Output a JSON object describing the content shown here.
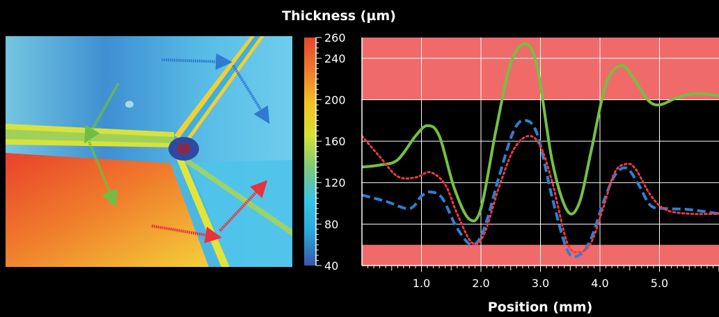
{
  "colorbar": {
    "title": "Thickness (µm)",
    "min": 40,
    "max": 260,
    "tick_labels": [
      "260",
      "240",
      "200",
      "160",
      "120",
      "80",
      "40"
    ],
    "tick_values": [
      260,
      240,
      200,
      160,
      120,
      80,
      40
    ],
    "stops": [
      "#3a55a8",
      "#29a6dc",
      "#37c4e6",
      "#7cc97a",
      "#d6e035",
      "#f5c023",
      "#f07a2d",
      "#e8442c"
    ]
  },
  "map_image": {
    "arrows": [
      {
        "name": "blue",
        "color": "#2f7bd1"
      },
      {
        "name": "green",
        "color": "#6fbf45"
      },
      {
        "name": "red",
        "color": "#e8323c"
      }
    ]
  },
  "chart_data": {
    "type": "line",
    "xlabel": "Position (mm)",
    "ylabel": "",
    "xlim": [
      0,
      6
    ],
    "ylim": [
      40,
      260
    ],
    "x_tick_labels": [
      "1.0",
      "2.0",
      "3.0",
      "4.0",
      "5.0"
    ],
    "x_ticks": [
      1.0,
      2.0,
      3.0,
      4.0,
      5.0
    ],
    "y_ticks": [
      40,
      80,
      120,
      160,
      200,
      240,
      260
    ],
    "grid": true,
    "bands": [
      {
        "from": 200,
        "to": 260,
        "color": "#f06a6a"
      },
      {
        "from": 40,
        "to": 60,
        "color": "#f06a6a"
      }
    ],
    "series": [
      {
        "style": "solid",
        "color": "#74c043",
        "x": [
          0,
          0.3,
          0.6,
          0.9,
          1.1,
          1.3,
          1.55,
          1.8,
          2.0,
          2.25,
          2.5,
          2.75,
          2.95,
          3.2,
          3.45,
          3.65,
          3.85,
          4.1,
          4.35,
          4.55,
          4.8,
          5.0,
          5.3,
          5.6,
          6.0
        ],
        "y": [
          135,
          137,
          142,
          165,
          175,
          165,
          115,
          85,
          95,
          170,
          235,
          254,
          230,
          140,
          93,
          100,
          150,
          215,
          233,
          222,
          200,
          195,
          202,
          206,
          204
        ]
      },
      {
        "style": "dashed",
        "color": "#2f7fd1",
        "x": [
          0,
          0.4,
          0.8,
          1.0,
          1.15,
          1.35,
          1.6,
          1.85,
          2.05,
          2.3,
          2.55,
          2.75,
          2.95,
          3.2,
          3.45,
          3.65,
          3.85,
          4.05,
          4.25,
          4.45,
          4.65,
          4.85,
          5.1,
          5.5,
          6.0
        ],
        "y": [
          108,
          102,
          95,
          107,
          111,
          105,
          76,
          60,
          75,
          125,
          170,
          180,
          166,
          105,
          55,
          50,
          66,
          100,
          127,
          134,
          118,
          98,
          95,
          94,
          90
        ]
      },
      {
        "style": "dotted",
        "color": "#f03a45",
        "x": [
          0,
          0.3,
          0.6,
          0.9,
          1.15,
          1.4,
          1.6,
          1.85,
          2.05,
          2.3,
          2.55,
          2.8,
          3.0,
          3.2,
          3.45,
          3.65,
          3.85,
          4.05,
          4.25,
          4.45,
          4.6,
          4.85,
          5.1,
          5.5,
          6.0
        ],
        "y": [
          165,
          145,
          126,
          125,
          130,
          118,
          90,
          62,
          70,
          115,
          152,
          165,
          155,
          120,
          62,
          53,
          62,
          95,
          130,
          138,
          133,
          108,
          94,
          90,
          90
        ]
      }
    ]
  }
}
